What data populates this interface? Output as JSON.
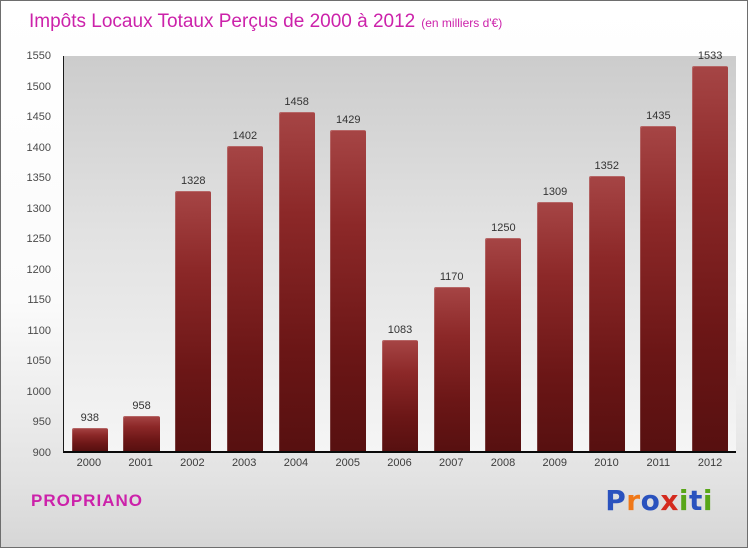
{
  "header": {
    "title": "Impôts Locaux Totaux Perçus de 2000 à 2012",
    "subtitle": "(en milliers d'€)"
  },
  "footer": {
    "location": "PROPRIANO"
  },
  "logo": {
    "name": "Proxiti",
    "letters": [
      {
        "ch": "P",
        "color": "#2a52be"
      },
      {
        "ch": "r",
        "color": "#f07818"
      },
      {
        "ch": "o",
        "color": "#2a52be"
      },
      {
        "ch": "x",
        "color": "#d42a1e"
      },
      {
        "ch": "i",
        "color": "#58a618"
      },
      {
        "ch": "t",
        "color": "#2a52be"
      },
      {
        "ch": "i",
        "color": "#58a618"
      }
    ]
  },
  "colors": {
    "title": "#cc22aa",
    "bar_top": "#a64545",
    "bar_bottom": "#571010",
    "value_label": "#333333",
    "tick_label": "#4a4a4a"
  },
  "chart_data": {
    "type": "bar",
    "title": "Impôts Locaux Totaux Perçus de 2000 à 2012 (en milliers d'€)",
    "categories": [
      "2000",
      "2001",
      "2002",
      "2003",
      "2004",
      "2005",
      "2006",
      "2007",
      "2008",
      "2009",
      "2010",
      "2011",
      "2012"
    ],
    "values": [
      938,
      958,
      1328,
      1402,
      1458,
      1429,
      1083,
      1170,
      1250,
      1309,
      1352,
      1435,
      1533
    ],
    "xlabel": "",
    "ylabel": "",
    "ylim": [
      900,
      1550
    ],
    "ytick_step": 50,
    "grid": false,
    "legend_position": "none",
    "bar_color": "maroon-gradient",
    "value_labels_shown": true
  }
}
